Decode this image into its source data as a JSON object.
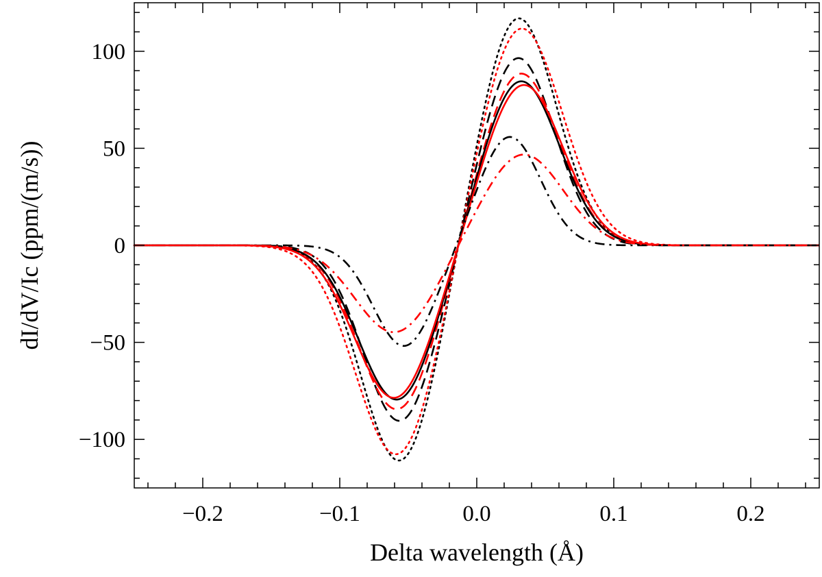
{
  "chart_data": {
    "type": "line",
    "title": "",
    "xlabel": "Delta wavelength (Å)",
    "ylabel": "dI/dV/Ic (ppm/(m/s))",
    "xlim": [
      -0.25,
      0.25
    ],
    "ylim": [
      -125,
      125
    ],
    "xticks": [
      {
        "value": -0.2,
        "label": "−0.2"
      },
      {
        "value": -0.1,
        "label": "−0.1"
      },
      {
        "value": 0.0,
        "label": "0.0"
      },
      {
        "value": 0.1,
        "label": "0.1"
      },
      {
        "value": 0.2,
        "label": "0.2"
      }
    ],
    "yticks": [
      {
        "value": -100,
        "label": "−100"
      },
      {
        "value": -50,
        "label": "−50"
      },
      {
        "value": 0,
        "label": "0"
      },
      {
        "value": 50,
        "label": "50"
      },
      {
        "value": 100,
        "label": "100"
      }
    ],
    "x_minor_step": 0.02,
    "y_minor_step": 10,
    "grid": false,
    "series": [
      {
        "name": "black dotted",
        "color": "#000000",
        "style": "dotted",
        "A": 112,
        "B": 118,
        "center_neg": -0.056,
        "center_pos": 0.03,
        "width": 0.04
      },
      {
        "name": "red dotted",
        "color": "#ff0000",
        "style": "dotted",
        "A": 109,
        "B": 113,
        "center_neg": -0.058,
        "center_pos": 0.032,
        "width": 0.043
      },
      {
        "name": "black dashed",
        "color": "#000000",
        "style": "dashed",
        "A": 91,
        "B": 97,
        "center_neg": -0.056,
        "center_pos": 0.03,
        "width": 0.038
      },
      {
        "name": "red dashed",
        "color": "#ff0000",
        "style": "dashed",
        "A": 85,
        "B": 89,
        "center_neg": -0.058,
        "center_pos": 0.032,
        "width": 0.04
      },
      {
        "name": "black solid",
        "color": "#000000",
        "style": "solid",
        "A": 80,
        "B": 85,
        "center_neg": -0.058,
        "center_pos": 0.032,
        "width": 0.04
      },
      {
        "name": "red solid",
        "color": "#ff0000",
        "style": "solid",
        "A": 79,
        "B": 83,
        "center_neg": -0.06,
        "center_pos": 0.034,
        "width": 0.041
      },
      {
        "name": "black dash-dot",
        "color": "#000000",
        "style": "dashdot",
        "A": 52,
        "B": 56,
        "center_neg": -0.053,
        "center_pos": 0.024,
        "width": 0.032
      },
      {
        "name": "red dash-dot",
        "color": "#ff0000",
        "style": "dashdot",
        "A": 45,
        "B": 47,
        "center_neg": -0.06,
        "center_pos": 0.034,
        "width": 0.041
      }
    ]
  }
}
